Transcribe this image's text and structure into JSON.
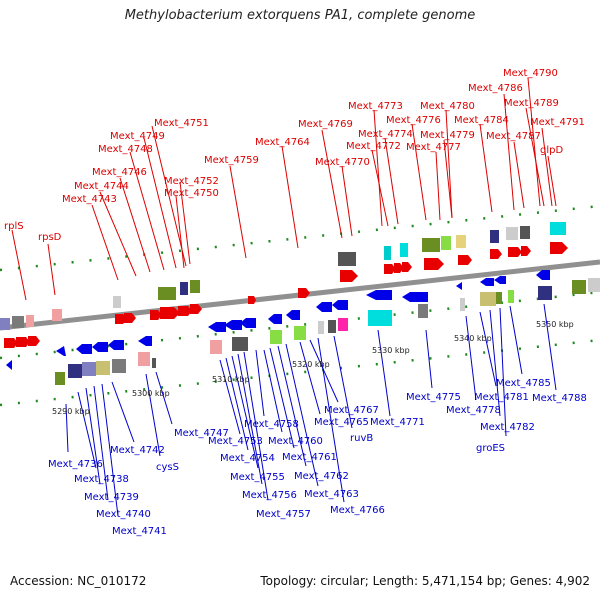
{
  "title": "Methylobacterium extorquens PA1, complete genome",
  "footer": {
    "accession": "Accession: NC_010172",
    "summary": "Topology: circular; Length: 5,471,154 bp; Genes: 4,902"
  },
  "ticks": [
    "5290 kbp",
    "5300 kbp",
    "5310 kbp",
    "5320 kbp",
    "5330 kbp",
    "5340 kbp",
    "5350 kbp"
  ],
  "top_labels": [
    "rplS",
    "rpsD",
    "Mext_4743",
    "Mext_4744",
    "Mext_4746",
    "Mext_4748",
    "Mext_4749",
    "Mext_4751",
    "Mext_4752",
    "Mext_4750",
    "Mext_4759",
    "Mext_4764",
    "Mext_4769",
    "Mext_4770",
    "Mext_4773",
    "Mext_4774",
    "Mext_4772",
    "Mext_4776",
    "Mext_4780",
    "Mext_4779",
    "Mext_4777",
    "Mext_4784",
    "Mext_4786",
    "Mext_4790",
    "Mext_4789",
    "Mext_4787",
    "Mext_4791",
    "glpD"
  ],
  "bottom_labels": [
    "Mext_4736",
    "Mext_4738",
    "Mext_4739",
    "Mext_4740",
    "Mext_4741",
    "Mext_4742",
    "cysS",
    "Mext_4747",
    "Mext_4753",
    "Mext_4754",
    "Mext_4755",
    "Mext_4756",
    "Mext_4757",
    "Mext_4758",
    "Mext_4760",
    "Mext_4761",
    "Mext_4762",
    "Mext_4763",
    "Mext_4765",
    "Mext_4767",
    "Mext_4766",
    "ruvB",
    "Mext_4771",
    "Mext_4775",
    "Mext_4778",
    "Mext_4781",
    "Mext_4782",
    "groES",
    "Mext_4785",
    "Mext_4788"
  ],
  "colors": {
    "forward": "#e80000",
    "reverse": "#0000e8",
    "axis": "#888888",
    "dots": "#228822"
  }
}
